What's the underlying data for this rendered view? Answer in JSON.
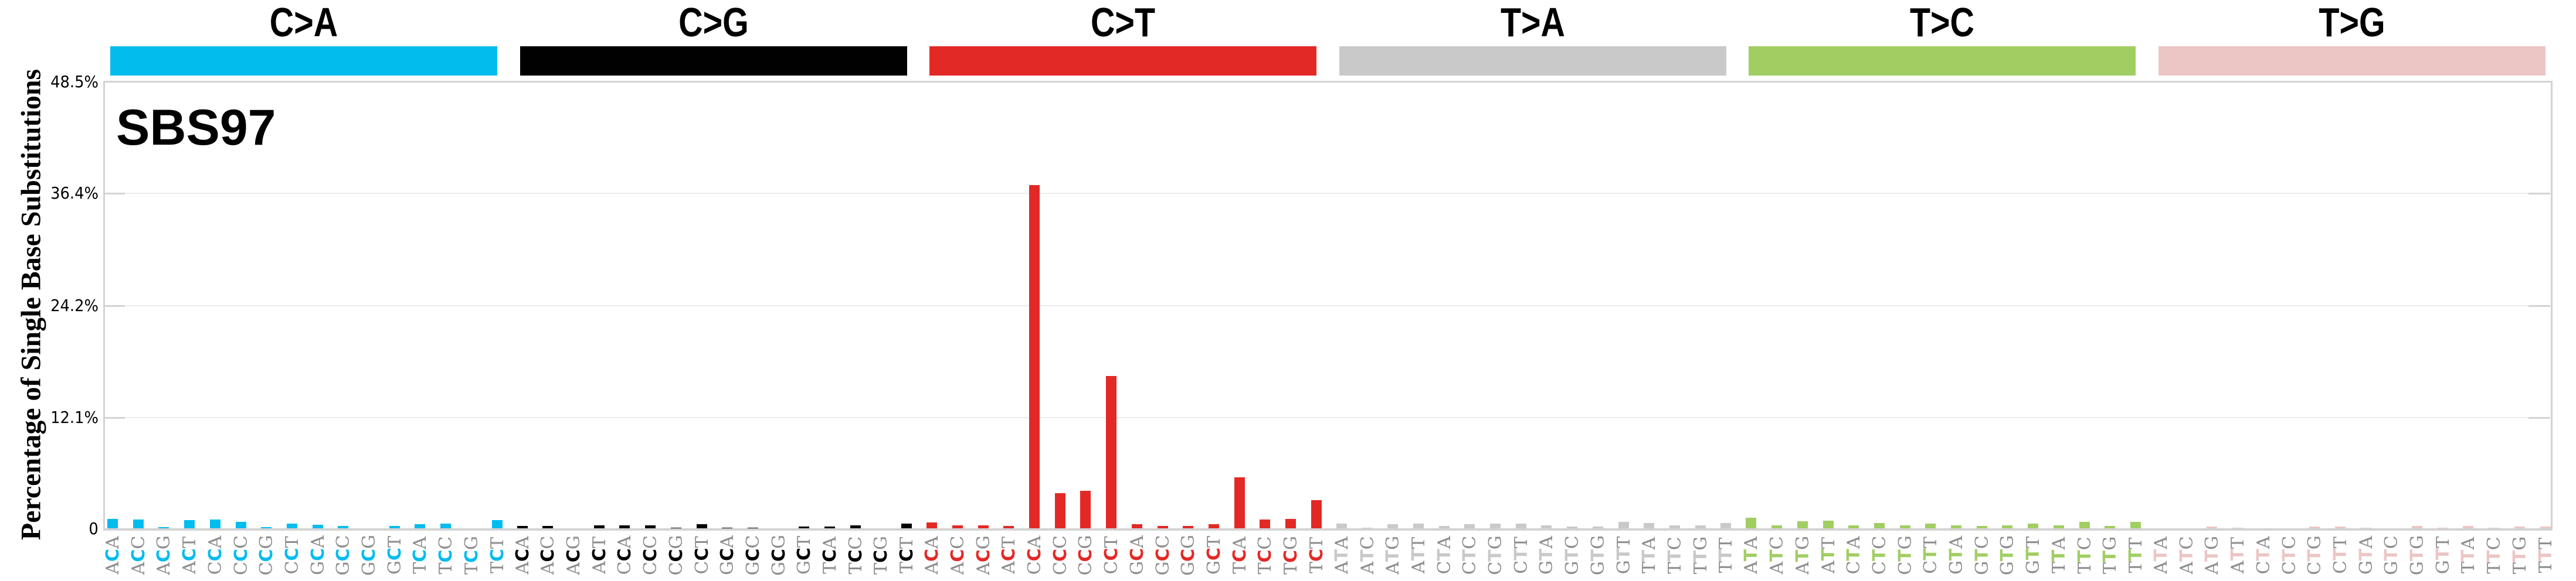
{
  "chart_data": {
    "type": "bar",
    "title": "SBS97",
    "ylabel": "Percentage of Single Base Substitutions",
    "xlabel": "",
    "ylim": [
      0,
      48.5
    ],
    "yticks": [
      "0",
      "12.1%",
      "24.2%",
      "36.4%",
      "48.5%"
    ],
    "ytick_values": [
      0,
      12.1,
      24.2,
      36.4,
      48.5
    ],
    "grid": true,
    "legend_position": "top (category bars)",
    "groups": [
      {
        "name": "C>A",
        "color": "#03BCEE",
        "categories": [
          "ACA",
          "ACC",
          "ACG",
          "ACT",
          "CCA",
          "CCC",
          "CCG",
          "CCT",
          "GCA",
          "GCC",
          "GCG",
          "GCT",
          "TCA",
          "TCC",
          "TCG",
          "TCT"
        ],
        "values": [
          1.1,
          1.01,
          0.17,
          0.93,
          1.01,
          0.76,
          0.17,
          0.59,
          0.42,
          0.34,
          0.08,
          0.34,
          0.51,
          0.59,
          0.08,
          0.93
        ]
      },
      {
        "name": "C>G",
        "color": "#010101",
        "categories": [
          "ACA",
          "ACC",
          "ACG",
          "ACT",
          "CCA",
          "CCC",
          "CCG",
          "CCT",
          "GCA",
          "GCC",
          "GCG",
          "GCT",
          "TCA",
          "TCC",
          "TCG",
          "TCT"
        ],
        "values": [
          0.32,
          0.32,
          0.06,
          0.4,
          0.4,
          0.4,
          0.15,
          0.5,
          0.15,
          0.15,
          0.06,
          0.24,
          0.24,
          0.4,
          0.06,
          0.58
        ]
      },
      {
        "name": "C>T",
        "color": "#E32926",
        "categories": [
          "ACA",
          "ACC",
          "ACG",
          "ACT",
          "CCA",
          "CCC",
          "CCG",
          "CCT",
          "GCA",
          "GCC",
          "GCG",
          "GCT",
          "TCA",
          "TCC",
          "TCG",
          "TCT"
        ],
        "values": [
          0.7,
          0.4,
          0.4,
          0.3,
          37.3,
          3.9,
          4.1,
          16.6,
          0.5,
          0.3,
          0.3,
          0.5,
          5.6,
          1.0,
          1.1,
          3.1
        ]
      },
      {
        "name": "T>A",
        "color": "#CAC9C9",
        "categories": [
          "ATA",
          "ATC",
          "ATG",
          "ATT",
          "CTA",
          "CTC",
          "CTG",
          "CTT",
          "GTA",
          "GTC",
          "GTG",
          "GTT",
          "TTA",
          "TTC",
          "TTG",
          "TTT"
        ],
        "values": [
          0.58,
          0.14,
          0.49,
          0.58,
          0.32,
          0.49,
          0.58,
          0.58,
          0.4,
          0.23,
          0.23,
          0.75,
          0.66,
          0.4,
          0.4,
          0.66
        ]
      },
      {
        "name": "T>C",
        "color": "#A1CE63",
        "categories": [
          "ATA",
          "ATC",
          "ATG",
          "ATT",
          "CTA",
          "CTC",
          "CTG",
          "CTT",
          "GTA",
          "GTC",
          "GTG",
          "GTT",
          "TTA",
          "TTC",
          "TTG",
          "TTT"
        ],
        "values": [
          1.19,
          0.4,
          0.84,
          0.92,
          0.4,
          0.66,
          0.4,
          0.58,
          0.4,
          0.32,
          0.4,
          0.58,
          0.4,
          0.75,
          0.32,
          0.75
        ]
      },
      {
        "name": "T>G",
        "color": "#EBC6C4",
        "categories": [
          "ATA",
          "ATC",
          "ATG",
          "ATT",
          "CTA",
          "CTC",
          "CTG",
          "CTT",
          "GTA",
          "GTC",
          "GTG",
          "GTT",
          "TTA",
          "TTC",
          "TTG",
          "TTT"
        ],
        "values": [
          0.06,
          0.06,
          0.24,
          0.15,
          0.06,
          0.06,
          0.24,
          0.24,
          0.15,
          0.0,
          0.32,
          0.15,
          0.32,
          0.15,
          0.24,
          0.24
        ]
      }
    ]
  },
  "axis": {
    "ylabel": "Percentage of Single Base Substitutions",
    "ticks": [
      {
        "label": "48.5%",
        "value": 48.5
      },
      {
        "label": "36.4%",
        "value": 36.4
      },
      {
        "label": "24.2%",
        "value": 24.2
      },
      {
        "label": "12.1%",
        "value": 12.1
      },
      {
        "label": "0",
        "value": 0
      }
    ]
  },
  "signature_title": "SBS97",
  "label_colors": {
    "flank": "#8C8C8C"
  }
}
